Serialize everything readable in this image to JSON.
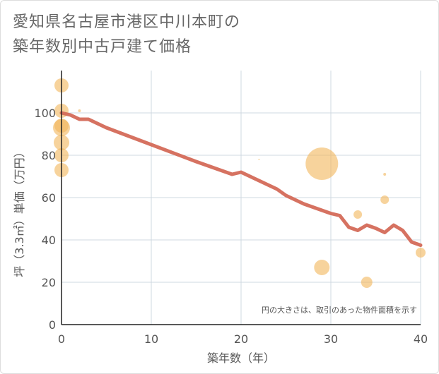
{
  "title": {
    "line1": "愛知県名古屋市港区中川本町の",
    "line2": "築年数別中古戸建て価格"
  },
  "chart_data": {
    "type": "scatter+line",
    "xlabel": "築年数（年）",
    "ylabel": "坪（3.3㎡）単価（万円）",
    "xlim": [
      0,
      40
    ],
    "ylim": [
      0,
      120
    ],
    "xticks": [
      "0",
      "10",
      "20",
      "30",
      "40"
    ],
    "yticks": [
      "0",
      "20",
      "40",
      "60",
      "80",
      "100"
    ],
    "annotation": "円の大きさは、取引のあった物件面積を示す",
    "colors": {
      "bubble": "#f2b65a",
      "line": "#d46a59",
      "grid": "#cfd8e0"
    },
    "trend_line": {
      "x": [
        0,
        1,
        2,
        3,
        4,
        5,
        10,
        15,
        19,
        20,
        21,
        22,
        23,
        24,
        25,
        26,
        27,
        28,
        29,
        30,
        31,
        32,
        33,
        34,
        35,
        36,
        37,
        38,
        39,
        40
      ],
      "y": [
        100,
        99,
        97,
        97,
        95,
        93,
        85,
        77,
        71,
        72,
        70,
        68,
        66,
        64,
        61,
        59,
        57,
        55.5,
        54,
        52.5,
        51.5,
        46,
        44.5,
        47,
        45.5,
        43.5,
        47,
        44.5,
        39,
        37.5
      ]
    },
    "bubbles": [
      {
        "x": 0,
        "y": 113,
        "size": 10
      },
      {
        "x": 0,
        "y": 101,
        "size": 10
      },
      {
        "x": 0,
        "y": 94,
        "size": 10
      },
      {
        "x": 0,
        "y": 93,
        "size": 12
      },
      {
        "x": 0,
        "y": 86,
        "size": 11
      },
      {
        "x": 0,
        "y": 80,
        "size": 10
      },
      {
        "x": 0,
        "y": 73,
        "size": 10
      },
      {
        "x": 2,
        "y": 101,
        "size": 2
      },
      {
        "x": 22,
        "y": 78,
        "size": 1
      },
      {
        "x": 29,
        "y": 76,
        "size": 23
      },
      {
        "x": 29,
        "y": 27,
        "size": 11
      },
      {
        "x": 33,
        "y": 52,
        "size": 6
      },
      {
        "x": 34,
        "y": 20,
        "size": 8
      },
      {
        "x": 36,
        "y": 71,
        "size": 2
      },
      {
        "x": 36,
        "y": 59,
        "size": 6
      },
      {
        "x": 40,
        "y": 34,
        "size": 7
      }
    ]
  }
}
